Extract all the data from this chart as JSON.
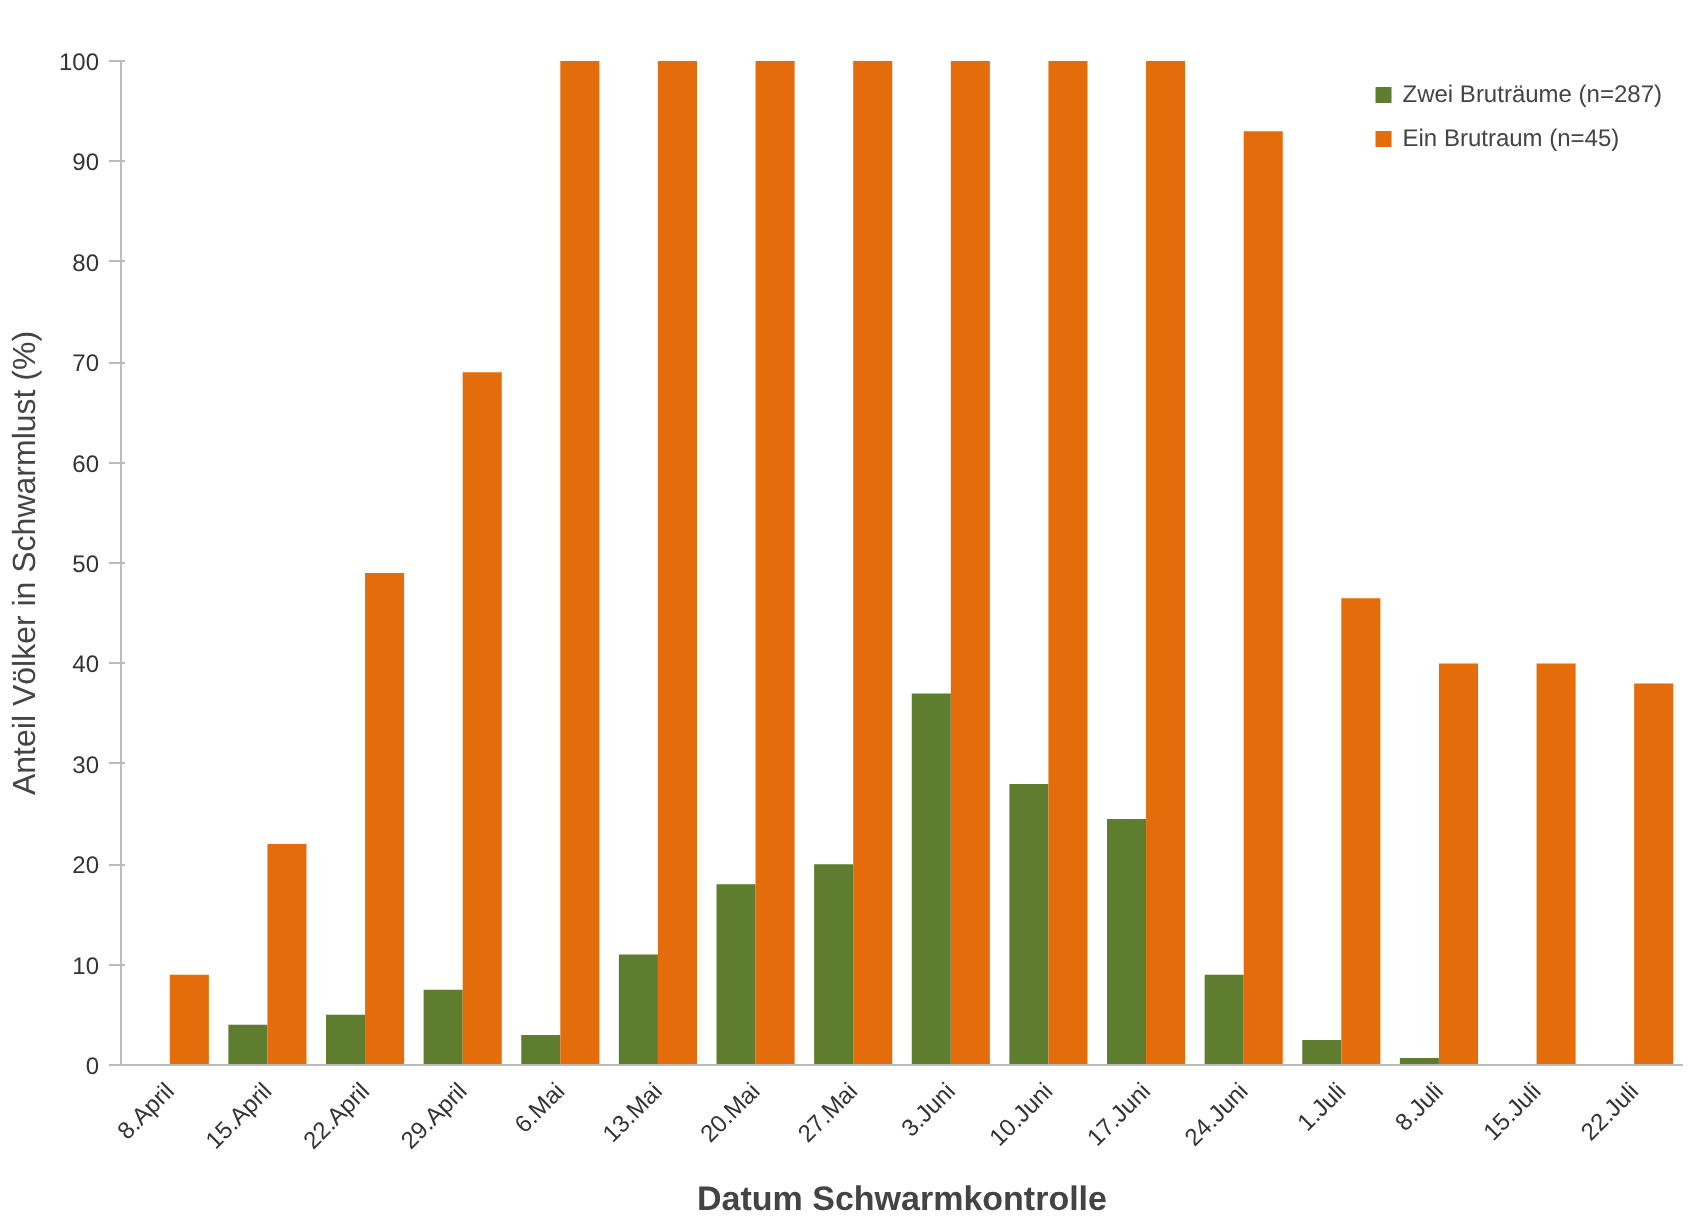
{
  "chart_data": {
    "type": "bar",
    "xlabel": "Datum Schwarmkontrolle",
    "ylabel": "Anteil Völker in Schwarmlust (%)",
    "categories": [
      "8.April",
      "15.April",
      "22.April",
      "29.April",
      "6.Mai",
      "13.Mai",
      "20.Mai",
      "27.Mai",
      "3.Juni",
      "10.Juni",
      "17.Juni",
      "24.Juni",
      "1.Juli",
      "8.Juli",
      "15.Juli",
      "22.Juli"
    ],
    "series": [
      {
        "name": "Zwei Bruträume (n=287)",
        "color": "#5e7d2e",
        "values": [
          0,
          4,
          5,
          7.5,
          3,
          11,
          18,
          20,
          37,
          28,
          24.5,
          9,
          2.5,
          0.7,
          0,
          0
        ]
      },
      {
        "name": "Ein Brutraum (n=45)",
        "color": "#e46c0a",
        "values": [
          9,
          22,
          49,
          69,
          100,
          100,
          100,
          100,
          100,
          100,
          100,
          93,
          46.5,
          40,
          40,
          38
        ]
      }
    ],
    "ylim": [
      0,
      100
    ],
    "yticks": [
      0,
      10,
      20,
      30,
      40,
      50,
      60,
      70,
      80,
      90,
      100
    ],
    "grid": false,
    "legend": "top right"
  }
}
